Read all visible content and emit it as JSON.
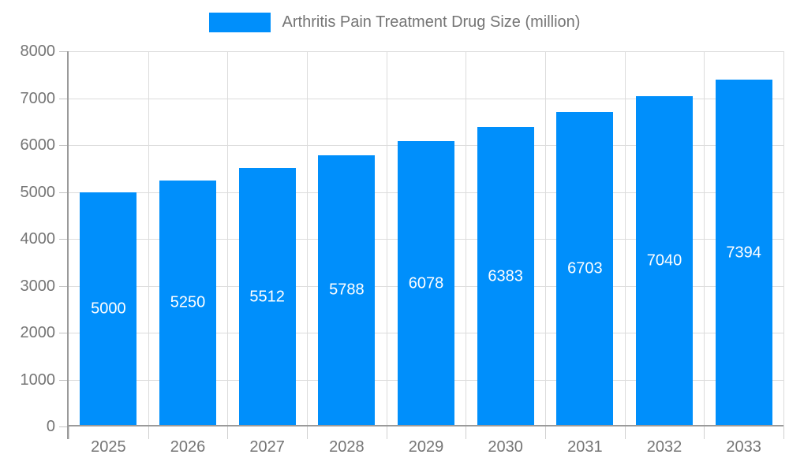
{
  "legend": {
    "label": "Arthritis Pain Treatment Drug Size (million)"
  },
  "colors": {
    "bar": "#008FFB",
    "bar_label": "#ffffff",
    "grid": "#dcdcdc",
    "axis": "#9a9a9a",
    "y_tick": "#c2c2c2",
    "x_tick": "#d0d0d0",
    "text": "#757575",
    "background": "#ffffff"
  },
  "chart_data": {
    "type": "bar",
    "title": "",
    "series": [
      {
        "name": "Arthritis Pain Treatment Drug Size (million)",
        "values": [
          5000,
          5250,
          5512,
          5788,
          6078,
          6383,
          6703,
          7040,
          7394
        ]
      }
    ],
    "categories": [
      "2025",
      "2026",
      "2027",
      "2028",
      "2029",
      "2030",
      "2031",
      "2032",
      "2033"
    ],
    "xlabel": "",
    "ylabel": "",
    "ylim": [
      0,
      8000
    ],
    "yticks": [
      0,
      1000,
      2000,
      3000,
      4000,
      5000,
      6000,
      7000,
      8000
    ],
    "grid": true,
    "legend_position": "top",
    "bar_value_labels_inside": true
  }
}
